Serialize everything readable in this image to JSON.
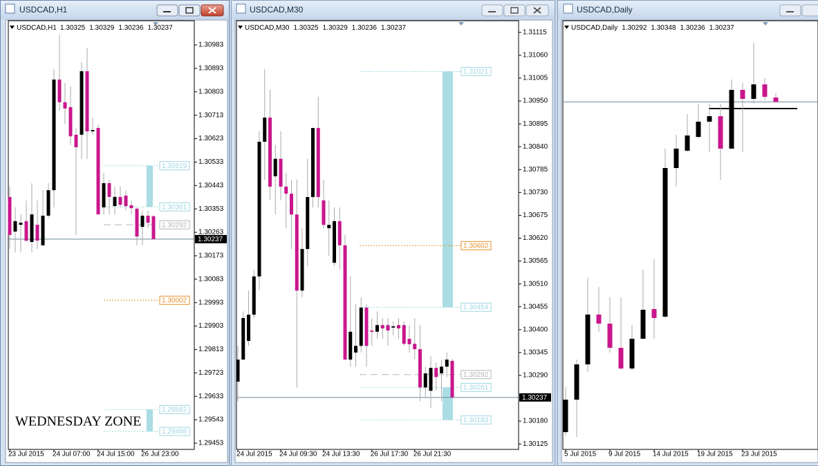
{
  "chart_data": [
    {
      "type": "candlestick",
      "title": "USDCAD,H1",
      "up_color": "#000000",
      "down_color": "#c8168c",
      "categories": [
        "23 Jul 2015",
        null,
        null,
        null,
        null,
        null,
        null,
        null,
        "24 Jul 07:00",
        null,
        null,
        null,
        null,
        null,
        null,
        null,
        "24 Jul 15:00",
        null,
        null,
        null,
        null,
        null,
        null,
        null,
        "26 Jul 23:00",
        null,
        null
      ],
      "open": [
        1.30399,
        1.30266,
        1.30292,
        1.30306,
        1.30226,
        1.30292,
        1.30213,
        1.30327,
        1.30425,
        1.3085,
        1.30763,
        1.30744,
        1.30638,
        1.30638,
        1.30882,
        1.30651,
        1.30664,
        1.30359,
        1.30452,
        1.30364,
        1.30399,
        1.30404,
        1.30367,
        1.30354,
        1.30284,
        1.30327,
        1.30325
      ],
      "high": [
        1.30439,
        1.30359,
        1.30332,
        1.30385,
        1.30452,
        1.30385,
        1.30425,
        1.30452,
        1.3089,
        1.31023,
        1.30837,
        1.30824,
        1.30664,
        1.30917,
        1.3097,
        1.30704,
        1.30678,
        1.30492,
        1.30465,
        1.30439,
        1.30439,
        1.30425,
        1.30385,
        1.30359,
        1.30346,
        1.30346,
        1.30329
      ],
      "low": [
        1.30199,
        1.30186,
        1.30186,
        1.30226,
        1.30186,
        1.30199,
        1.30213,
        1.30319,
        1.30359,
        1.30731,
        1.30678,
        1.30598,
        1.30253,
        1.30545,
        1.30545,
        1.30638,
        1.30332,
        1.30332,
        1.30332,
        1.30332,
        1.30359,
        1.30346,
        1.30332,
        1.30213,
        1.30213,
        1.30279,
        1.30236
      ],
      "close": [
        1.30253,
        1.30306,
        1.303,
        1.30231,
        1.30332,
        1.30231,
        1.30327,
        1.30425,
        1.3085,
        1.30763,
        1.30739,
        1.30632,
        1.3059,
        1.30882,
        1.30651,
        1.30656,
        1.30332,
        1.30452,
        1.30399,
        1.30399,
        1.30369,
        1.30364,
        1.30356,
        1.30247,
        1.30327,
        1.303,
        1.30237
      ],
      "ylim": [
        1.29429,
        1.31076
      ],
      "yticks": [
        1.30983,
        1.30893,
        1.30803,
        1.30713,
        1.30623,
        1.30533,
        1.30443,
        1.30353,
        1.30263,
        1.30173,
        1.30083,
        1.29993,
        1.29903,
        1.29813,
        1.29723,
        1.29633,
        1.29543,
        1.29453
      ],
      "levels": [
        {
          "value": 1.30519,
          "color": "#9fd6e2",
          "style": "dotted"
        },
        {
          "value": 1.30361,
          "color": "#9fd6e2",
          "style": "dotted"
        },
        {
          "value": 1.30292,
          "color": "#b4b4b4",
          "style": "dashed"
        },
        {
          "value": 1.30002,
          "color": "#e8902a",
          "style": "dotted"
        },
        {
          "value": 1.29582,
          "color": "#9fd6e2",
          "style": "dotted"
        },
        {
          "value": 1.29498,
          "color": "#9fd6e2",
          "style": "dotted"
        }
      ],
      "zones": [
        {
          "from": 1.30519,
          "to": 1.30361,
          "color": "#a9dde3"
        },
        {
          "from": 1.29582,
          "to": 1.29498,
          "color": "#a9dde3"
        }
      ],
      "annotation": "WEDNESDAY ZONE"
    },
    {
      "type": "candlestick",
      "title": "USDCAD,M30",
      "up_color": "#000000",
      "down_color": "#c8168c",
      "categories": [
        "24 Jul 2015",
        null,
        null,
        null,
        null,
        null,
        null,
        null,
        "24 Jul 09:30",
        null,
        null,
        null,
        null,
        null,
        null,
        null,
        "24 Jul 13:30",
        null,
        null,
        null,
        null,
        null,
        null,
        null,
        null,
        "26 Jul 17:30",
        null,
        null,
        null,
        null,
        null,
        null,
        null,
        "26 Jul 21:30",
        null,
        null,
        null,
        null,
        null,
        null,
        null
      ],
      "open": [
        1.30275,
        1.30328,
        1.30373,
        1.30436,
        1.30528,
        1.30852,
        1.3091,
        1.30769,
        1.30811,
        1.30744,
        1.30727,
        1.30677,
        1.30494,
        1.30594,
        1.30719,
        1.30885,
        1.30711,
        1.30644,
        1.30561,
        1.30661,
        1.30603,
        1.30328,
        1.30345,
        1.30361,
        1.30453,
        1.30398,
        1.30395,
        1.30411,
        1.30411,
        1.30405,
        1.30411,
        1.30411,
        1.30378,
        1.30366,
        1.30353,
        1.30261,
        1.30253,
        1.30308,
        1.30295,
        1.30311,
        1.30325
      ],
      "high": [
        1.30361,
        1.30444,
        1.30494,
        1.30544,
        1.30877,
        1.31027,
        1.30977,
        1.30844,
        1.30877,
        1.30777,
        1.30761,
        1.30761,
        1.30644,
        1.30811,
        1.30885,
        1.3096,
        1.30761,
        1.30711,
        1.30694,
        1.30694,
        1.30628,
        1.30528,
        1.30461,
        1.30478,
        1.30461,
        1.30428,
        1.30444,
        1.30428,
        1.30428,
        1.3042,
        1.30428,
        1.3042,
        1.30411,
        1.30428,
        1.30411,
        1.30311,
        1.30336,
        1.3032,
        1.30328,
        1.30345,
        1.30329
      ],
      "low": [
        1.30228,
        1.30328,
        1.30361,
        1.30428,
        1.30494,
        1.30761,
        1.30711,
        1.30677,
        1.30711,
        1.30644,
        1.30594,
        1.30261,
        1.30478,
        1.30553,
        1.30694,
        1.30694,
        1.30644,
        1.30578,
        1.30553,
        1.30544,
        1.30328,
        1.30311,
        1.30311,
        1.30345,
        1.30311,
        1.30361,
        1.30378,
        1.30378,
        1.30361,
        1.30386,
        1.30378,
        1.30361,
        1.30345,
        1.30328,
        1.30228,
        1.30237,
        1.30212,
        1.30253,
        1.30228,
        1.30286,
        1.30236
      ],
      "close": [
        1.30328,
        1.30428,
        1.30436,
        1.30528,
        1.30852,
        1.3091,
        1.30744,
        1.30811,
        1.30744,
        1.30727,
        1.30677,
        1.30494,
        1.30594,
        1.30719,
        1.30885,
        1.30719,
        1.30652,
        1.30652,
        1.30661,
        1.30603,
        1.30328,
        1.30395,
        1.30361,
        1.30453,
        1.30361,
        1.30395,
        1.30411,
        1.30403,
        1.30398,
        1.30408,
        1.30403,
        1.30366,
        1.30365,
        1.30353,
        1.30261,
        1.30295,
        1.30308,
        1.30286,
        1.30311,
        1.30328,
        1.30237
      ],
      "ylim": [
        1.30112,
        1.31143
      ],
      "yticks": [
        1.31115,
        {
          "value": 1.3106,
          "label": "1.31060"
        },
        1.31005,
        {
          "value": 1.3095,
          "label": "1.30950"
        },
        1.30895,
        {
          "value": 1.3084,
          "label": "1.30840"
        },
        1.30785,
        {
          "value": 1.3073,
          "label": "1.30730"
        },
        1.30675,
        {
          "value": 1.3062,
          "label": "1.30620"
        },
        1.30565,
        {
          "value": 1.3051,
          "label": "1.30510"
        },
        1.30455,
        {
          "value": 1.304,
          "label": "1.30400"
        },
        1.30345,
        {
          "value": 1.3029,
          "label": "1.30290"
        },
        {
          "value": 1.3018,
          "label": "1.30180"
        },
        1.30125
      ],
      "levels": [
        {
          "value": 1.31021,
          "color": "#9fd6e2",
          "style": "dotted"
        },
        {
          "value": 1.30602,
          "color": "#e8902a",
          "style": "dotted"
        },
        {
          "value": 1.30454,
          "color": "#9fd6e2",
          "style": "dotted"
        },
        {
          "value": 1.30292,
          "color": "#b4b4b4",
          "style": "dashed"
        },
        {
          "value": 1.30261,
          "color": "#9fd6e2",
          "style": "dotted"
        },
        {
          "value": 1.30183,
          "color": "#9fd6e2",
          "style": "dotted"
        }
      ],
      "zones": [
        {
          "from": 1.31021,
          "to": 1.30454,
          "color": "#a9dde3"
        },
        {
          "from": 1.30261,
          "to": 1.30183,
          "color": "#a9dde3"
        }
      ]
    },
    {
      "type": "candlestick",
      "title": "USDCAD,Daily",
      "up_color": "#000000",
      "down_color": "#c8168c",
      "categories": [
        "5 Jul 2015",
        null,
        null,
        null,
        "9 Jul 2015",
        null,
        null,
        null,
        "14 Jul 2015",
        null,
        null,
        null,
        "19 Jul 2015",
        null,
        null,
        null,
        "23 Jul 2015",
        null,
        null,
        null
      ],
      "open": [
        1.26116,
        1.26521,
        1.26961,
        1.27583,
        1.2747,
        1.27168,
        1.2691,
        1.27281,
        1.27652,
        1.27557,
        1.29412,
        1.29628,
        1.298,
        1.2999,
        1.30059,
        1.29654,
        1.30387,
        1.30275,
        1.30456,
        1.30292
      ],
      "high": [
        1.26677,
        1.27022,
        1.2804,
        1.27928,
        1.27798,
        1.27798,
        1.27453,
        1.28144,
        1.28273,
        1.29654,
        1.29826,
        1.30085,
        1.30215,
        1.30215,
        1.30215,
        1.30517,
        1.30473,
        1.30974,
        1.30534,
        1.30348
      ],
      "low": [
        1.26073,
        1.26055,
        1.26866,
        1.27367,
        1.27108,
        1.26892,
        1.26892,
        1.27281,
        1.27281,
        1.2754,
        1.29179,
        1.29611,
        1.29783,
        1.29611,
        1.29265,
        1.29654,
        1.29611,
        1.30215,
        1.30258,
        1.30236
      ],
      "close": [
        1.26521,
        1.26961,
        1.27583,
        1.2747,
        1.27168,
        1.2691,
        1.27281,
        1.27643,
        1.2754,
        1.29412,
        1.29654,
        1.29818,
        1.2999,
        1.30059,
        1.29654,
        1.30387,
        1.30275,
        1.30456,
        1.30301,
        1.30237
      ],
      "ylim": [
        1.259,
        1.3125
      ],
      "levels": [
        {
          "value": 1.30154,
          "color": "#000000",
          "style": "solid",
          "width": 2,
          "show_label": false
        }
      ]
    }
  ]
}
